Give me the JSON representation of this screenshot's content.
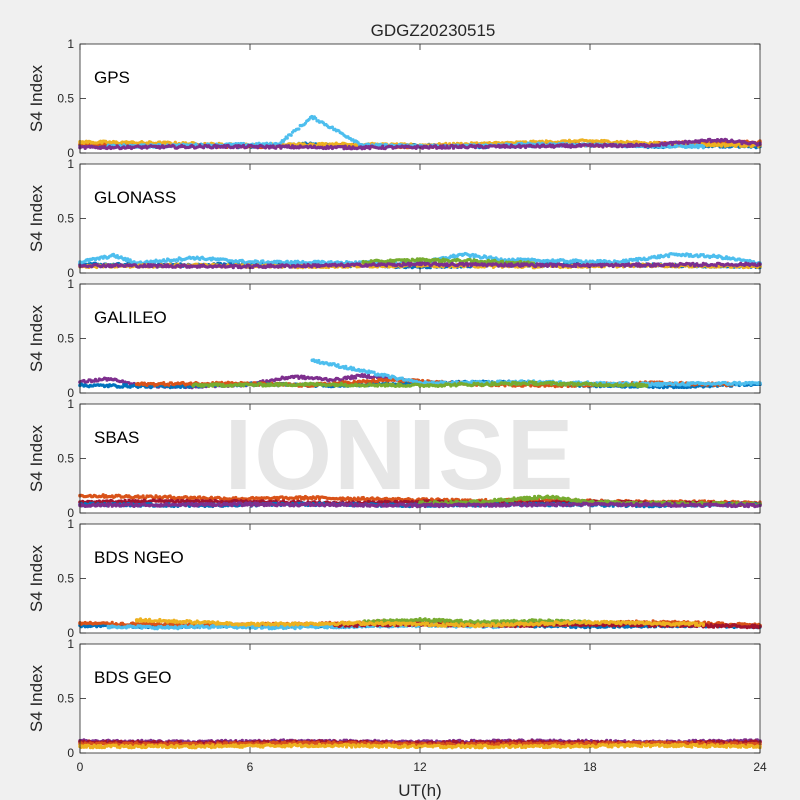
{
  "chart_data": {
    "type": "scatter",
    "title": "GDGZ20230515",
    "xlabel": "UT(h)",
    "ylabel": "S4 Index",
    "xlim": [
      0,
      24
    ],
    "ylim": [
      0,
      1
    ],
    "xticks": [
      "0",
      "6",
      "12",
      "18",
      "24"
    ],
    "yticks": [
      "0",
      "0.5",
      "1"
    ],
    "grid": false,
    "colors": [
      "#0072bd",
      "#d95319",
      "#edb120",
      "#7e2f8e",
      "#77ac30",
      "#4dbeee",
      "#a2142f"
    ],
    "panels": [
      {
        "label": "GPS",
        "series": [
          {
            "color": "#0072bd",
            "x": [
              0,
              2,
              4,
              6,
              8,
              10,
              12,
              14,
              16,
              18,
              20,
              22,
              24
            ],
            "y": [
              0.07,
              0.06,
              0.07,
              0.06,
              0.08,
              0.06,
              0.07,
              0.06,
              0.07,
              0.08,
              0.06,
              0.07,
              0.06
            ]
          },
          {
            "color": "#d95319",
            "x": [
              0,
              3,
              6,
              9,
              12,
              15,
              18,
              21,
              24
            ],
            "y": [
              0.08,
              0.07,
              0.06,
              0.07,
              0.06,
              0.08,
              0.07,
              0.09,
              0.1
            ]
          },
          {
            "color": "#edb120",
            "x": [
              0,
              3,
              6,
              9,
              12,
              15,
              18,
              21,
              24
            ],
            "y": [
              0.1,
              0.09,
              0.07,
              0.08,
              0.07,
              0.09,
              0.11,
              0.08,
              0.07
            ]
          },
          {
            "color": "#4dbeee",
            "x": [
              1,
              4,
              7,
              8.2,
              10,
              13,
              16,
              19,
              22
            ],
            "y": [
              0.06,
              0.07,
              0.08,
              0.33,
              0.07,
              0.06,
              0.08,
              0.07,
              0.06
            ]
          },
          {
            "color": "#7e2f8e",
            "x": [
              0,
              5,
              10,
              15,
              20,
              22.5,
              24
            ],
            "y": [
              0.05,
              0.06,
              0.05,
              0.06,
              0.07,
              0.12,
              0.08
            ]
          }
        ]
      },
      {
        "label": "GLONASS",
        "series": [
          {
            "color": "#0072bd",
            "x": [
              0,
              3,
              6,
              9,
              12,
              15,
              18,
              21,
              24
            ],
            "y": [
              0.08,
              0.07,
              0.08,
              0.07,
              0.06,
              0.07,
              0.08,
              0.07,
              0.06
            ]
          },
          {
            "color": "#4dbeee",
            "x": [
              0,
              1.2,
              2,
              4,
              6,
              12,
              13.5,
              15,
              19,
              21,
              22.5,
              24
            ],
            "y": [
              0.1,
              0.16,
              0.09,
              0.14,
              0.1,
              0.09,
              0.17,
              0.12,
              0.1,
              0.17,
              0.15,
              0.09
            ]
          },
          {
            "color": "#edb120",
            "x": [
              0,
              4,
              8,
              12,
              16,
              20,
              24
            ],
            "y": [
              0.06,
              0.07,
              0.06,
              0.07,
              0.06,
              0.07,
              0.06
            ]
          },
          {
            "color": "#77ac30",
            "x": [
              10,
              12,
              14,
              16
            ],
            "y": [
              0.1,
              0.12,
              0.11,
              0.09
            ]
          },
          {
            "color": "#7e2f8e",
            "x": [
              0,
              6,
              12,
              18,
              24
            ],
            "y": [
              0.07,
              0.06,
              0.08,
              0.07,
              0.08
            ]
          }
        ]
      },
      {
        "label": "GALILEO",
        "series": [
          {
            "color": "#7e2f8e",
            "x": [
              0,
              1,
              2,
              4,
              6,
              7.5,
              9,
              10,
              12
            ],
            "y": [
              0.1,
              0.13,
              0.07,
              0.06,
              0.08,
              0.15,
              0.12,
              0.16,
              0.1
            ]
          },
          {
            "color": "#0072bd",
            "x": [
              0,
              3,
              6,
              9,
              12,
              15,
              18,
              21,
              24
            ],
            "y": [
              0.07,
              0.06,
              0.08,
              0.07,
              0.09,
              0.1,
              0.07,
              0.06,
              0.08
            ]
          },
          {
            "color": "#d95319",
            "x": [
              2,
              5,
              8,
              11,
              14,
              17,
              20,
              23
            ],
            "y": [
              0.08,
              0.09,
              0.07,
              0.12,
              0.08,
              0.07,
              0.09,
              0.08
            ]
          },
          {
            "color": "#4dbeee",
            "x": [
              8.2,
              12,
              16,
              20,
              24
            ],
            "y": [
              0.3,
              0.09,
              0.1,
              0.08,
              0.09
            ]
          },
          {
            "color": "#77ac30",
            "x": [
              4,
              8,
              12,
              16,
              20
            ],
            "y": [
              0.07,
              0.08,
              0.07,
              0.09,
              0.07
            ]
          }
        ]
      },
      {
        "label": "SBAS",
        "series": [
          {
            "color": "#d95319",
            "x": [
              0,
              2,
              4,
              6,
              8,
              10,
              12,
              14,
              16,
              18,
              20,
              22,
              24
            ],
            "y": [
              0.16,
              0.15,
              0.14,
              0.13,
              0.14,
              0.13,
              0.12,
              0.11,
              0.12,
              0.11,
              0.1,
              0.1,
              0.09
            ]
          },
          {
            "color": "#a2142f",
            "x": [
              0,
              3,
              6,
              9,
              12,
              15,
              18,
              21,
              24
            ],
            "y": [
              0.1,
              0.11,
              0.1,
              0.09,
              0.1,
              0.09,
              0.1,
              0.09,
              0.08
            ]
          },
          {
            "color": "#0072bd",
            "x": [
              0,
              4,
              8,
              12,
              16,
              20,
              24
            ],
            "y": [
              0.08,
              0.07,
              0.08,
              0.07,
              0.08,
              0.07,
              0.08
            ]
          },
          {
            "color": "#77ac30",
            "x": [
              12,
              14,
              16.5,
              18,
              20,
              24
            ],
            "y": [
              0.09,
              0.1,
              0.15,
              0.1,
              0.09,
              0.08
            ]
          },
          {
            "color": "#7e2f8e",
            "x": [
              0,
              6,
              12,
              18,
              24
            ],
            "y": [
              0.07,
              0.08,
              0.07,
              0.08,
              0.07
            ]
          }
        ]
      },
      {
        "label": "BDS NGEO",
        "series": [
          {
            "color": "#0072bd",
            "x": [
              0,
              3,
              6,
              9,
              12,
              15,
              18,
              21,
              24
            ],
            "y": [
              0.07,
              0.06,
              0.07,
              0.06,
              0.09,
              0.07,
              0.06,
              0.07,
              0.06
            ]
          },
          {
            "color": "#d95319",
            "x": [
              0,
              2,
              4,
              8,
              11,
              14,
              17,
              20,
              22,
              24
            ],
            "y": [
              0.09,
              0.08,
              0.07,
              0.08,
              0.1,
              0.09,
              0.08,
              0.1,
              0.09,
              0.07
            ]
          },
          {
            "color": "#4dbeee",
            "x": [
              1,
              3,
              5,
              7,
              9,
              12,
              15
            ],
            "y": [
              0.06,
              0.05,
              0.06,
              0.05,
              0.06,
              0.07,
              0.06
            ]
          },
          {
            "color": "#a2142f",
            "x": [
              9,
              12,
              15,
              18,
              21,
              24
            ],
            "y": [
              0.07,
              0.08,
              0.07,
              0.08,
              0.07,
              0.06
            ]
          },
          {
            "color": "#77ac30",
            "x": [
              10,
              12,
              14,
              16,
              18
            ],
            "y": [
              0.1,
              0.12,
              0.1,
              0.11,
              0.1
            ]
          },
          {
            "color": "#edb120",
            "x": [
              2,
              6,
              10,
              14,
              18,
              22
            ],
            "y": [
              0.12,
              0.08,
              0.09,
              0.07,
              0.1,
              0.08
            ]
          }
        ]
      },
      {
        "label": "BDS GEO",
        "series": [
          {
            "color": "#7e2f8e",
            "x": [
              0,
              4,
              8,
              12,
              16,
              20,
              24
            ],
            "y": [
              0.11,
              0.1,
              0.11,
              0.1,
              0.11,
              0.1,
              0.11
            ]
          },
          {
            "color": "#a2142f",
            "x": [
              0,
              4,
              8,
              12,
              16,
              20,
              24
            ],
            "y": [
              0.1,
              0.09,
              0.1,
              0.09,
              0.1,
              0.09,
              0.1
            ]
          },
          {
            "color": "#d95319",
            "x": [
              0,
              4,
              8,
              12,
              16,
              20,
              24
            ],
            "y": [
              0.08,
              0.08,
              0.09,
              0.08,
              0.08,
              0.09,
              0.08
            ]
          },
          {
            "color": "#edb120",
            "x": [
              0,
              4,
              8,
              12,
              16,
              20,
              24
            ],
            "y": [
              0.06,
              0.06,
              0.07,
              0.06,
              0.06,
              0.07,
              0.06
            ]
          }
        ]
      }
    ]
  },
  "watermark": "IONISE"
}
